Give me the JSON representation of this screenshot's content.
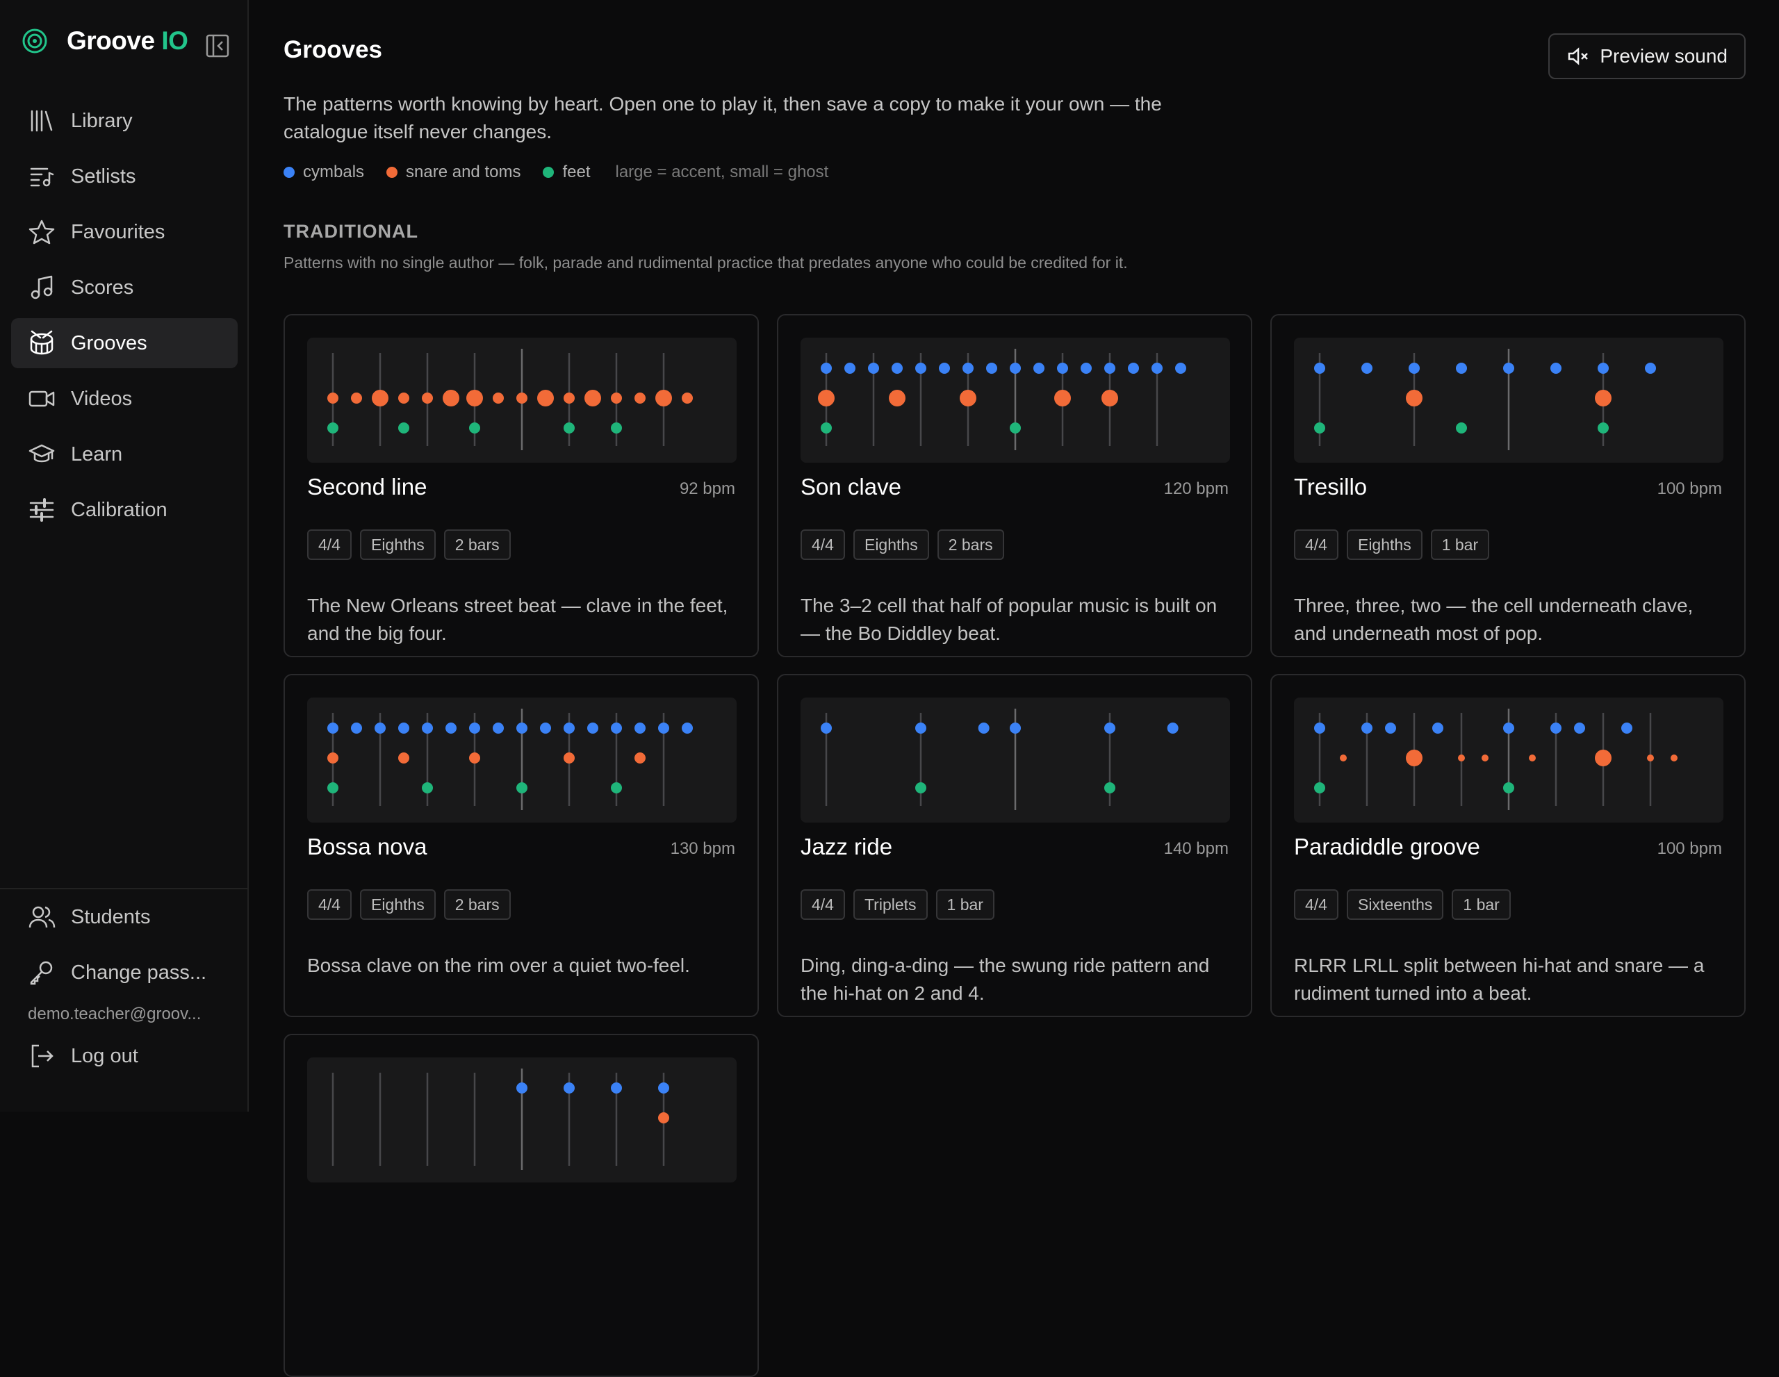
{
  "brand": {
    "name": "Groove",
    "accent": "IO"
  },
  "nav": [
    {
      "label": "Library",
      "icon": "library-icon",
      "active": false
    },
    {
      "label": "Setlists",
      "icon": "setlist-icon",
      "active": false
    },
    {
      "label": "Favourites",
      "icon": "star-icon",
      "active": false
    },
    {
      "label": "Scores",
      "icon": "music-note-icon",
      "active": false
    },
    {
      "label": "Grooves",
      "icon": "drum-icon",
      "active": true
    },
    {
      "label": "Videos",
      "icon": "video-icon",
      "active": false
    },
    {
      "label": "Learn",
      "icon": "graduation-cap-icon",
      "active": false
    },
    {
      "label": "Calibration",
      "icon": "sliders-icon",
      "active": false
    }
  ],
  "bottom": {
    "students": "Students",
    "change_password": "Change pass...",
    "email": "demo.teacher@groov...",
    "logout": "Log out"
  },
  "page": {
    "title": "Grooves",
    "preview_button": "Preview sound",
    "intro": "The patterns worth knowing by heart. Open one to play it, then save a copy to make it your own — the catalogue itself never changes."
  },
  "legend": {
    "cymbals": "cymbals",
    "snare": "snare and toms",
    "feet": "feet",
    "note": "large = accent, small = ghost"
  },
  "colors": {
    "cymbals": "#3b82f6",
    "snare": "#f26b38",
    "feet": "#1fb57a",
    "brand_accent": "#22c58b"
  },
  "section": {
    "title": "TRADITIONAL",
    "description": "Patterns with no single author — folk, parade and rudimental practice that predates anyone who could be credited for it."
  },
  "cards": [
    {
      "name": "Second line",
      "bpm": "92 bpm",
      "tags": [
        "4/4",
        "Eighths",
        "2 bars"
      ],
      "description": "The New Orleans street beat — clave in the feet, and the big four.",
      "steps": 16,
      "cymbals": [],
      "snare": [
        [
          0,
          "n"
        ],
        [
          1,
          "n"
        ],
        [
          2,
          "a"
        ],
        [
          3,
          "n"
        ],
        [
          4,
          "n"
        ],
        [
          5,
          "a"
        ],
        [
          6,
          "a"
        ],
        [
          7,
          "n"
        ],
        [
          8,
          "n"
        ],
        [
          9,
          "a"
        ],
        [
          10,
          "n"
        ],
        [
          11,
          "a"
        ],
        [
          12,
          "n"
        ],
        [
          13,
          "n"
        ],
        [
          14,
          "a"
        ],
        [
          15,
          "n"
        ]
      ],
      "feet": [
        [
          0,
          "n"
        ],
        [
          3,
          "n"
        ],
        [
          6,
          "n"
        ],
        [
          10,
          "n"
        ],
        [
          12,
          "n"
        ]
      ]
    },
    {
      "name": "Son clave",
      "bpm": "120 bpm",
      "tags": [
        "4/4",
        "Eighths",
        "2 bars"
      ],
      "description": "The 3–2 cell that half of popular music is built on — the Bo Diddley beat.",
      "steps": 16,
      "cymbals": [
        [
          0,
          "n"
        ],
        [
          1,
          "n"
        ],
        [
          2,
          "n"
        ],
        [
          3,
          "n"
        ],
        [
          4,
          "n"
        ],
        [
          5,
          "n"
        ],
        [
          6,
          "n"
        ],
        [
          7,
          "n"
        ],
        [
          8,
          "n"
        ],
        [
          9,
          "n"
        ],
        [
          10,
          "n"
        ],
        [
          11,
          "n"
        ],
        [
          12,
          "n"
        ],
        [
          13,
          "n"
        ],
        [
          14,
          "n"
        ],
        [
          15,
          "n"
        ]
      ],
      "snare": [
        [
          0,
          "a"
        ],
        [
          3,
          "a"
        ],
        [
          6,
          "a"
        ],
        [
          10,
          "a"
        ],
        [
          12,
          "a"
        ]
      ],
      "feet": [
        [
          0,
          "n"
        ],
        [
          8,
          "n"
        ]
      ]
    },
    {
      "name": "Tresillo",
      "bpm": "100 bpm",
      "tags": [
        "4/4",
        "Eighths",
        "1 bar"
      ],
      "description": "Three, three, two — the cell underneath clave, and underneath most of pop.",
      "steps": 8,
      "cymbals": [
        [
          0,
          "n"
        ],
        [
          1,
          "n"
        ],
        [
          2,
          "n"
        ],
        [
          3,
          "n"
        ],
        [
          4,
          "n"
        ],
        [
          5,
          "n"
        ],
        [
          6,
          "n"
        ],
        [
          7,
          "n"
        ]
      ],
      "snare": [
        [
          2,
          "a"
        ],
        [
          6,
          "a"
        ]
      ],
      "feet": [
        [
          0,
          "n"
        ],
        [
          3,
          "n"
        ],
        [
          6,
          "n"
        ]
      ]
    },
    {
      "name": "Bossa nova",
      "bpm": "130 bpm",
      "tags": [
        "4/4",
        "Eighths",
        "2 bars"
      ],
      "description": "Bossa clave on the rim over a quiet two-feel.",
      "steps": 16,
      "cymbals": [
        [
          0,
          "n"
        ],
        [
          1,
          "n"
        ],
        [
          2,
          "n"
        ],
        [
          3,
          "n"
        ],
        [
          4,
          "n"
        ],
        [
          5,
          "n"
        ],
        [
          6,
          "n"
        ],
        [
          7,
          "n"
        ],
        [
          8,
          "n"
        ],
        [
          9,
          "n"
        ],
        [
          10,
          "n"
        ],
        [
          11,
          "n"
        ],
        [
          12,
          "n"
        ],
        [
          13,
          "n"
        ],
        [
          14,
          "n"
        ],
        [
          15,
          "n"
        ]
      ],
      "snare": [
        [
          0,
          "n"
        ],
        [
          3,
          "n"
        ],
        [
          6,
          "n"
        ],
        [
          10,
          "n"
        ],
        [
          13,
          "n"
        ]
      ],
      "feet": [
        [
          0,
          "n"
        ],
        [
          4,
          "n"
        ],
        [
          8,
          "n"
        ],
        [
          12,
          "n"
        ]
      ]
    },
    {
      "name": "Jazz ride",
      "bpm": "140 bpm",
      "tags": [
        "4/4",
        "Triplets",
        "1 bar"
      ],
      "description": "Ding, ding-a-ding — the swung ride pattern and the hi-hat on 2 and 4.",
      "steps": 12,
      "cymbals": [
        [
          0,
          "n"
        ],
        [
          3,
          "n"
        ],
        [
          5,
          "n"
        ],
        [
          6,
          "n"
        ],
        [
          9,
          "n"
        ],
        [
          11,
          "n"
        ]
      ],
      "snare": [],
      "feet": [
        [
          3,
          "n"
        ],
        [
          9,
          "n"
        ]
      ]
    },
    {
      "name": "Paradiddle groove",
      "bpm": "100 bpm",
      "tags": [
        "4/4",
        "Sixteenths",
        "1 bar"
      ],
      "description": "RLRR LRLL split between hi-hat and snare — a rudiment turned into a beat.",
      "steps": 16,
      "cymbals": [
        [
          0,
          "n"
        ],
        [
          2,
          "n"
        ],
        [
          3,
          "n"
        ],
        [
          5,
          "n"
        ],
        [
          8,
          "n"
        ],
        [
          10,
          "n"
        ],
        [
          11,
          "n"
        ],
        [
          13,
          "n"
        ]
      ],
      "snare": [
        [
          1,
          "g"
        ],
        [
          4,
          "a"
        ],
        [
          6,
          "g"
        ],
        [
          7,
          "g"
        ],
        [
          9,
          "g"
        ],
        [
          12,
          "a"
        ],
        [
          14,
          "g"
        ],
        [
          15,
          "g"
        ]
      ],
      "feet": [
        [
          0,
          "n"
        ],
        [
          8,
          "n"
        ]
      ]
    },
    {
      "name": "",
      "bpm": "",
      "tags": [],
      "description": "",
      "steps": 16,
      "cymbals": [
        [
          8,
          "n"
        ],
        [
          10,
          "n"
        ],
        [
          12,
          "n"
        ],
        [
          14,
          "n"
        ]
      ],
      "snare": [
        [
          14,
          "n"
        ]
      ],
      "feet": []
    }
  ]
}
